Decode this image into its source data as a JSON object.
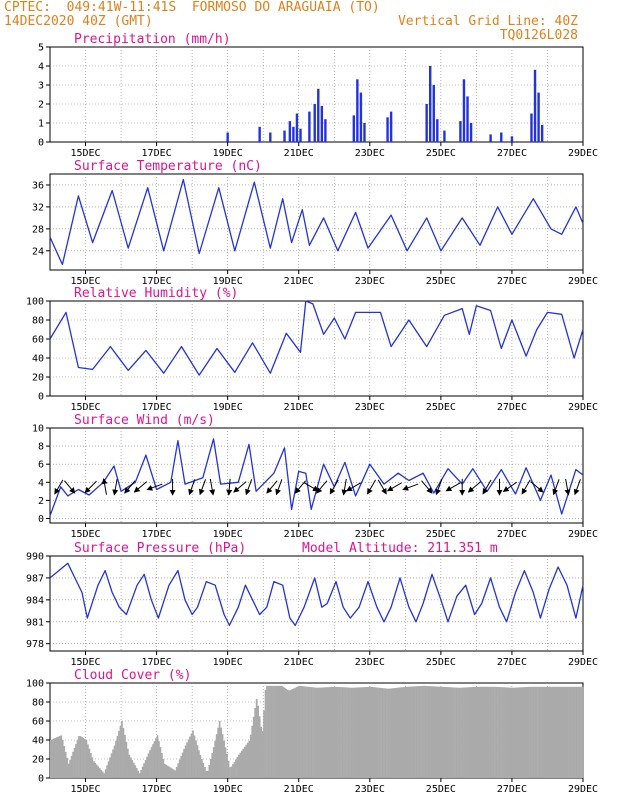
{
  "header": {
    "line1_left": "CPTEC:  049:41W-11:41S  FORMOSO DO ARAGUAIA (TO)",
    "line2_left": "14DEC2020 40Z (GMT)",
    "line2_right": "Vertical Grid Line: 40Z",
    "line3_right": "TQ0126L028"
  },
  "colors": {
    "header": "#e0801a",
    "title": "#e0148c",
    "series": "#2233dd",
    "cloud": "#aaaaaa"
  },
  "chart_data": [
    {
      "type": "bar",
      "title": "Precipitation (mm/h)",
      "x_tick_labels": [
        "15DEC",
        "17DEC",
        "19DEC",
        "21DEC",
        "23DEC",
        "25DEC",
        "27DEC",
        "29DEC"
      ],
      "y_ticks": [
        0,
        1,
        2,
        3,
        4,
        5
      ],
      "ylim": [
        0,
        5
      ],
      "xlim_days": [
        14,
        29
      ],
      "bars": [
        [
          19.0,
          0.5
        ],
        [
          19.9,
          0.8
        ],
        [
          20.2,
          0.5
        ],
        [
          20.6,
          0.6
        ],
        [
          20.75,
          1.1
        ],
        [
          20.85,
          0.8
        ],
        [
          20.95,
          1.5
        ],
        [
          21.05,
          0.7
        ],
        [
          21.3,
          1.6
        ],
        [
          21.45,
          2.0
        ],
        [
          21.55,
          2.8
        ],
        [
          21.65,
          1.9
        ],
        [
          21.75,
          1.2
        ],
        [
          22.55,
          1.4
        ],
        [
          22.65,
          3.3
        ],
        [
          22.75,
          2.6
        ],
        [
          22.85,
          1.0
        ],
        [
          23.5,
          1.3
        ],
        [
          23.6,
          1.6
        ],
        [
          24.6,
          2.0
        ],
        [
          24.7,
          4.0
        ],
        [
          24.8,
          3.0
        ],
        [
          24.9,
          1.2
        ],
        [
          25.1,
          0.6
        ],
        [
          25.55,
          1.1
        ],
        [
          25.65,
          3.3
        ],
        [
          25.75,
          2.4
        ],
        [
          25.85,
          1.0
        ],
        [
          26.4,
          0.4
        ],
        [
          26.7,
          0.5
        ],
        [
          27.0,
          0.3
        ],
        [
          27.55,
          1.5
        ],
        [
          27.65,
          3.8
        ],
        [
          27.75,
          2.6
        ],
        [
          27.85,
          0.9
        ]
      ]
    },
    {
      "type": "line",
      "title": "Surface Temperature (nC)",
      "x_tick_labels": [
        "15DEC",
        "17DEC",
        "19DEC",
        "21DEC",
        "23DEC",
        "25DEC",
        "27DEC",
        "29DEC"
      ],
      "y_ticks": [
        24,
        28,
        32,
        36
      ],
      "ylim": [
        20.5,
        38
      ],
      "xlim_days": [
        14,
        29
      ],
      "points": [
        [
          14.0,
          26.5
        ],
        [
          14.35,
          21.5
        ],
        [
          14.8,
          34.0
        ],
        [
          15.2,
          25.5
        ],
        [
          15.75,
          35.0
        ],
        [
          16.2,
          24.5
        ],
        [
          16.75,
          35.5
        ],
        [
          17.2,
          24.0
        ],
        [
          17.75,
          37.0
        ],
        [
          18.2,
          23.5
        ],
        [
          18.75,
          35.5
        ],
        [
          19.2,
          24.0
        ],
        [
          19.75,
          36.5
        ],
        [
          20.2,
          24.5
        ],
        [
          20.55,
          33.5
        ],
        [
          20.8,
          25.5
        ],
        [
          21.1,
          31.5
        ],
        [
          21.3,
          25.0
        ],
        [
          21.7,
          30.0
        ],
        [
          22.1,
          24.0
        ],
        [
          22.6,
          31.0
        ],
        [
          22.95,
          24.5
        ],
        [
          23.6,
          30.5
        ],
        [
          24.05,
          24.0
        ],
        [
          24.6,
          30.0
        ],
        [
          25.0,
          24.0
        ],
        [
          25.6,
          30.0
        ],
        [
          26.1,
          25.0
        ],
        [
          26.6,
          32.0
        ],
        [
          27.0,
          27.0
        ],
        [
          27.6,
          33.5
        ],
        [
          28.1,
          28.0
        ],
        [
          28.4,
          27.0
        ],
        [
          28.8,
          32.0
        ],
        [
          29.0,
          29.0
        ]
      ]
    },
    {
      "type": "line",
      "title": "Relative Humidity (%)",
      "x_tick_labels": [
        "15DEC",
        "17DEC",
        "19DEC",
        "21DEC",
        "23DEC",
        "25DEC",
        "27DEC",
        "29DEC"
      ],
      "y_ticks": [
        0,
        20,
        40,
        60,
        80,
        100
      ],
      "ylim": [
        0,
        100
      ],
      "xlim_days": [
        14,
        29
      ],
      "points": [
        [
          14.0,
          60.0
        ],
        [
          14.45,
          88.0
        ],
        [
          14.8,
          30.0
        ],
        [
          15.2,
          28.0
        ],
        [
          15.7,
          52.0
        ],
        [
          16.2,
          27.0
        ],
        [
          16.7,
          48.0
        ],
        [
          17.2,
          24.0
        ],
        [
          17.7,
          52.0
        ],
        [
          18.2,
          22.0
        ],
        [
          18.7,
          50.0
        ],
        [
          19.2,
          25.0
        ],
        [
          19.7,
          56.0
        ],
        [
          20.2,
          24.0
        ],
        [
          20.65,
          66.0
        ],
        [
          21.05,
          46.0
        ],
        [
          21.2,
          100.0
        ],
        [
          21.4,
          97.0
        ],
        [
          21.7,
          65.0
        ],
        [
          22.0,
          82.0
        ],
        [
          22.3,
          60.0
        ],
        [
          22.6,
          88.0
        ],
        [
          23.0,
          88.0
        ],
        [
          23.3,
          88.0
        ],
        [
          23.6,
          52.0
        ],
        [
          24.1,
          80.0
        ],
        [
          24.6,
          52.0
        ],
        [
          25.1,
          85.0
        ],
        [
          25.6,
          92.0
        ],
        [
          25.8,
          65.0
        ],
        [
          26.0,
          95.0
        ],
        [
          26.4,
          90.0
        ],
        [
          26.7,
          50.0
        ],
        [
          27.0,
          80.0
        ],
        [
          27.4,
          42.0
        ],
        [
          27.7,
          70.0
        ],
        [
          28.0,
          88.0
        ],
        [
          28.4,
          86.0
        ],
        [
          28.75,
          40.0
        ],
        [
          29.0,
          70.0
        ]
      ]
    },
    {
      "type": "line",
      "title": "Surface Wind (m/s)",
      "x_tick_labels": [
        "15DEC",
        "17DEC",
        "19DEC",
        "21DEC",
        "23DEC",
        "25DEC",
        "27DEC",
        "29DEC"
      ],
      "y_ticks": [
        0,
        2,
        4,
        6,
        8,
        10
      ],
      "ylim": [
        -0.5,
        10
      ],
      "xlim_days": [
        14,
        29
      ],
      "points": [
        [
          14.0,
          0.3
        ],
        [
          14.3,
          3.5
        ],
        [
          14.5,
          2.5
        ],
        [
          14.8,
          3.2
        ],
        [
          15.1,
          2.6
        ],
        [
          15.5,
          4.0
        ],
        [
          15.8,
          5.8
        ],
        [
          16.0,
          3.0
        ],
        [
          16.4,
          4.0
        ],
        [
          16.7,
          7.0
        ],
        [
          17.0,
          3.2
        ],
        [
          17.4,
          4.0
        ],
        [
          17.6,
          8.6
        ],
        [
          17.8,
          3.8
        ],
        [
          18.3,
          4.5
        ],
        [
          18.6,
          8.8
        ],
        [
          18.8,
          3.8
        ],
        [
          19.3,
          4.0
        ],
        [
          19.6,
          8.2
        ],
        [
          19.8,
          3.0
        ],
        [
          20.3,
          5.0
        ],
        [
          20.6,
          7.8
        ],
        [
          20.8,
          1.0
        ],
        [
          21.0,
          5.2
        ],
        [
          21.2,
          5.0
        ],
        [
          21.35,
          1.0
        ],
        [
          21.7,
          6.0
        ],
        [
          22.0,
          3.5
        ],
        [
          22.3,
          6.2
        ],
        [
          22.6,
          2.5
        ],
        [
          23.0,
          6.0
        ],
        [
          23.4,
          3.8
        ],
        [
          23.8,
          5.0
        ],
        [
          24.1,
          4.2
        ],
        [
          24.5,
          5.0
        ],
        [
          24.8,
          2.8
        ],
        [
          25.2,
          5.5
        ],
        [
          25.6,
          3.8
        ],
        [
          25.9,
          5.5
        ],
        [
          26.3,
          3.0
        ],
        [
          26.7,
          5.4
        ],
        [
          27.1,
          2.7
        ],
        [
          27.4,
          5.6
        ],
        [
          27.8,
          2.0
        ],
        [
          28.1,
          4.8
        ],
        [
          28.4,
          0.5
        ],
        [
          28.8,
          5.4
        ],
        [
          29.0,
          4.8
        ]
      ],
      "arrows": [
        [
          14.25,
          -120
        ],
        [
          14.55,
          -50
        ],
        [
          15.15,
          -135
        ],
        [
          15.55,
          100
        ],
        [
          15.85,
          -100
        ],
        [
          16.25,
          -130
        ],
        [
          16.55,
          -140
        ],
        [
          16.95,
          -160
        ],
        [
          17.45,
          -90
        ],
        [
          18.0,
          -110
        ],
        [
          18.3,
          -110
        ],
        [
          18.55,
          -80
        ],
        [
          19.05,
          -95
        ],
        [
          19.35,
          -140
        ],
        [
          19.6,
          -110
        ],
        [
          20.25,
          -130
        ],
        [
          20.45,
          -110
        ],
        [
          21.05,
          -130
        ],
        [
          21.35,
          -30
        ],
        [
          21.65,
          -130
        ],
        [
          22.0,
          -120
        ],
        [
          22.3,
          -100
        ],
        [
          22.55,
          -150
        ],
        [
          23.05,
          -120
        ],
        [
          23.35,
          -60
        ],
        [
          23.7,
          -150
        ],
        [
          24.15,
          -160
        ],
        [
          24.6,
          -50
        ],
        [
          24.95,
          -110
        ],
        [
          25.35,
          -150
        ],
        [
          25.6,
          -90
        ],
        [
          25.95,
          -140
        ],
        [
          26.3,
          -120
        ],
        [
          26.65,
          -90
        ],
        [
          26.95,
          -145
        ],
        [
          27.4,
          -120
        ],
        [
          27.7,
          -40
        ],
        [
          28.25,
          -110
        ],
        [
          28.55,
          -80
        ],
        [
          28.85,
          -110
        ]
      ]
    },
    {
      "type": "line",
      "title": "Surface Pressure (hPa)",
      "annotation": "Model Altitude: 211.351 m",
      "x_tick_labels": [
        "15DEC",
        "17DEC",
        "19DEC",
        "21DEC",
        "23DEC",
        "25DEC",
        "27DEC",
        "29DEC"
      ],
      "y_ticks": [
        978,
        981,
        984,
        987,
        990
      ],
      "ylim": [
        977,
        990
      ],
      "xlim_days": [
        14,
        29
      ],
      "points": [
        [
          14.0,
          987.0
        ],
        [
          14.25,
          988.0
        ],
        [
          14.5,
          989.0
        ],
        [
          14.7,
          987.0
        ],
        [
          14.9,
          985.0
        ],
        [
          15.05,
          981.5
        ],
        [
          15.35,
          986.0
        ],
        [
          15.55,
          988.0
        ],
        [
          15.75,
          985.0
        ],
        [
          15.95,
          983.0
        ],
        [
          16.15,
          982.0
        ],
        [
          16.45,
          986.0
        ],
        [
          16.65,
          987.5
        ],
        [
          16.85,
          984.0
        ],
        [
          17.05,
          981.5
        ],
        [
          17.35,
          986.0
        ],
        [
          17.6,
          988.0
        ],
        [
          17.8,
          984.0
        ],
        [
          18.0,
          982.0
        ],
        [
          18.15,
          983.0
        ],
        [
          18.4,
          986.5
        ],
        [
          18.65,
          986.0
        ],
        [
          18.9,
          982.0
        ],
        [
          19.05,
          980.5
        ],
        [
          19.3,
          983.0
        ],
        [
          19.5,
          986.0
        ],
        [
          19.7,
          984.0
        ],
        [
          19.9,
          982.0
        ],
        [
          20.1,
          983.0
        ],
        [
          20.3,
          986.5
        ],
        [
          20.55,
          986.0
        ],
        [
          20.75,
          981.5
        ],
        [
          20.9,
          980.5
        ],
        [
          21.15,
          983.0
        ],
        [
          21.45,
          987.0
        ],
        [
          21.65,
          983.0
        ],
        [
          21.8,
          983.5
        ],
        [
          22.05,
          986.5
        ],
        [
          22.25,
          983.0
        ],
        [
          22.45,
          981.5
        ],
        [
          22.7,
          983.0
        ],
        [
          22.95,
          986.5
        ],
        [
          23.2,
          983.0
        ],
        [
          23.4,
          981.0
        ],
        [
          23.6,
          983.0
        ],
        [
          23.85,
          987.0
        ],
        [
          24.1,
          983.0
        ],
        [
          24.3,
          981.0
        ],
        [
          24.5,
          983.5
        ],
        [
          24.75,
          987.5
        ],
        [
          25.0,
          984.0
        ],
        [
          25.2,
          981.0
        ],
        [
          25.45,
          984.5
        ],
        [
          25.7,
          986.0
        ],
        [
          25.95,
          982.0
        ],
        [
          26.15,
          983.5
        ],
        [
          26.4,
          987.0
        ],
        [
          26.65,
          983.0
        ],
        [
          26.85,
          981.0
        ],
        [
          27.1,
          985.0
        ],
        [
          27.35,
          988.0
        ],
        [
          27.6,
          985.0
        ],
        [
          27.8,
          981.5
        ],
        [
          28.05,
          985.5
        ],
        [
          28.3,
          988.5
        ],
        [
          28.55,
          986.0
        ],
        [
          28.8,
          981.5
        ],
        [
          29.0,
          986.0
        ]
      ]
    },
    {
      "type": "bar",
      "title": "Cloud Cover (%)",
      "x_tick_labels": [
        "15DEC",
        "17DEC",
        "19DEC",
        "21DEC",
        "23DEC",
        "25DEC",
        "27DEC",
        "29DEC"
      ],
      "y_ticks": [
        0,
        20,
        40,
        60,
        80,
        100
      ],
      "ylim": [
        0,
        100
      ],
      "xlim_days": [
        14,
        29
      ],
      "profile": [
        [
          14.0,
          40
        ],
        [
          14.3,
          45
        ],
        [
          14.5,
          15
        ],
        [
          14.8,
          45
        ],
        [
          15.0,
          40
        ],
        [
          15.2,
          18
        ],
        [
          15.5,
          5
        ],
        [
          15.8,
          35
        ],
        [
          16.0,
          60
        ],
        [
          16.2,
          25
        ],
        [
          16.5,
          5
        ],
        [
          16.8,
          30
        ],
        [
          17.0,
          45
        ],
        [
          17.2,
          15
        ],
        [
          17.5,
          8
        ],
        [
          17.8,
          35
        ],
        [
          18.0,
          50
        ],
        [
          18.2,
          25
        ],
        [
          18.4,
          5
        ],
        [
          18.6,
          35
        ],
        [
          18.75,
          60
        ],
        [
          18.9,
          35
        ],
        [
          19.05,
          10
        ],
        [
          19.3,
          25
        ],
        [
          19.6,
          40
        ],
        [
          19.8,
          85
        ],
        [
          19.95,
          45
        ],
        [
          20.05,
          97
        ],
        [
          20.5,
          97
        ],
        [
          20.7,
          92
        ],
        [
          21.0,
          97
        ],
        [
          21.5,
          95
        ],
        [
          22.0,
          96
        ],
        [
          22.5,
          95
        ],
        [
          23.0,
          96
        ],
        [
          23.5,
          94
        ],
        [
          24.0,
          96
        ],
        [
          24.5,
          97
        ],
        [
          25.0,
          96
        ],
        [
          25.5,
          95
        ],
        [
          26.0,
          96
        ],
        [
          26.5,
          96
        ],
        [
          27.0,
          95
        ],
        [
          27.5,
          96
        ],
        [
          28.0,
          96
        ],
        [
          28.5,
          96
        ],
        [
          29.0,
          96
        ]
      ]
    }
  ]
}
